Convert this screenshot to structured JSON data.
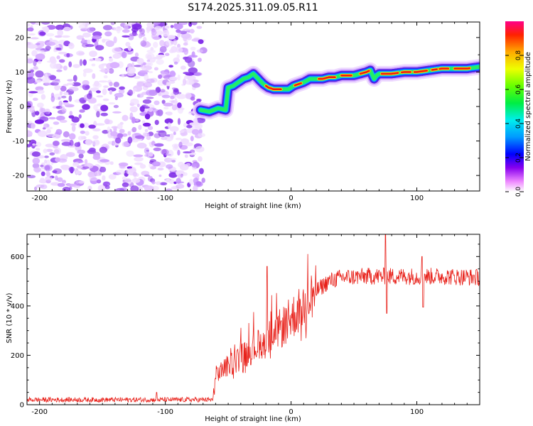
{
  "title": "S174.2025.311.09.05.R11",
  "chart_data": [
    {
      "type": "heatmap",
      "xlabel": "Height of straight line (km)",
      "ylabel": "Frequency (Hz)",
      "xlim": [
        -210,
        150
      ],
      "ylim": [
        -24.5,
        24.5
      ],
      "xticks": [
        -200,
        -100,
        0,
        100
      ],
      "yticks": [
        -20,
        -10,
        0,
        10,
        20
      ],
      "noise_region_x": [
        -210,
        -73
      ],
      "ridge": {
        "x": [
          -72,
          -65,
          -58,
          -52,
          -50,
          -46,
          -42,
          -38,
          -34,
          -30,
          -26,
          -22,
          -18,
          -14,
          -10,
          -6,
          -2,
          2,
          6,
          10,
          15,
          20,
          25,
          30,
          35,
          40,
          45,
          50,
          55,
          60,
          63,
          66,
          68,
          70,
          75,
          80,
          90,
          100,
          110,
          120,
          130,
          140,
          150
        ],
        "y": [
          -1,
          -1.5,
          -0.5,
          -1,
          5.5,
          6,
          7,
          8,
          8.5,
          9.5,
          8,
          6.5,
          5.5,
          5,
          5,
          5,
          5,
          6,
          6.5,
          7,
          8,
          8,
          8,
          8.5,
          8.5,
          9,
          9,
          9,
          9.5,
          10,
          10.5,
          8,
          9,
          9.5,
          9.5,
          9.5,
          10,
          10,
          10.5,
          11,
          11,
          11,
          11.5
        ]
      },
      "colorbar": {
        "label": "Normalized spectral amplitude",
        "ticks": [
          0.0,
          0.2,
          0.4,
          0.6,
          0.8
        ],
        "range": [
          0,
          1
        ]
      }
    },
    {
      "type": "line",
      "xlabel": "Height of straight line (km)",
      "ylabel": "SNR (10 * v/v)",
      "xlim": [
        -210,
        150
      ],
      "ylim": [
        0,
        690
      ],
      "xticks": [
        -200,
        -100,
        0,
        100
      ],
      "yticks": [
        0,
        200,
        400,
        600
      ],
      "color": "#e8221b",
      "trend": {
        "x": [
          -210,
          -62,
          -60,
          -50,
          -40,
          -30,
          -20,
          -10,
          0,
          10,
          15,
          20,
          25,
          30,
          40,
          60,
          80,
          100,
          120,
          150
        ],
        "y": [
          20,
          20,
          120,
          160,
          190,
          230,
          260,
          300,
          350,
          400,
          430,
          460,
          480,
          500,
          515,
          520,
          520,
          520,
          520,
          515
        ]
      },
      "spikes": [
        {
          "x": -19,
          "y": 560
        },
        {
          "x": -107,
          "y": 50
        },
        {
          "x": 75,
          "y": 690
        },
        {
          "x": 76,
          "y": 370
        },
        {
          "x": 104,
          "y": 600
        },
        {
          "x": 105,
          "y": 395
        }
      ]
    }
  ]
}
